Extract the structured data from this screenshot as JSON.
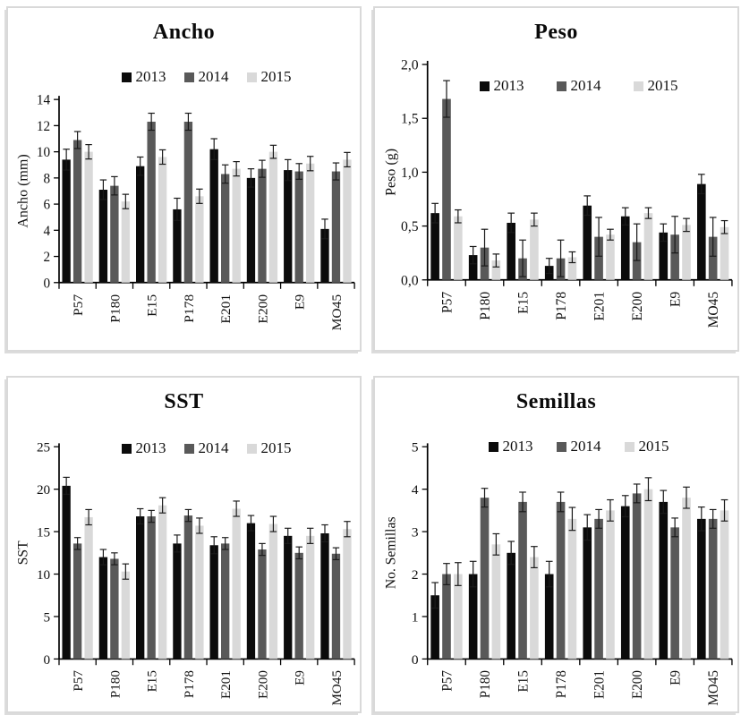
{
  "figure": {
    "background": "#ffffff",
    "panel_border_color": "#d9d9d9",
    "axis_color": "#000000",
    "error_bar_color": "#1a1a1a"
  },
  "chart_data": [
    {
      "type": "bar",
      "title": "Ancho",
      "ylabel": "Ancho (mm)",
      "xlabel": "",
      "ylim": [
        0,
        14
      ],
      "yticks": [
        0,
        2,
        4,
        6,
        8,
        10,
        12,
        14
      ],
      "ytick_labels": [
        "0",
        "2",
        "4",
        "6",
        "8",
        "10",
        "12",
        "14"
      ],
      "grid": false,
      "legend_position": "top-center-above-plot",
      "x_labels_rotated_degrees": -90,
      "categories": [
        "P57",
        "P180",
        "E15",
        "P178",
        "E201",
        "E200",
        "E9",
        "MO45"
      ],
      "series": [
        {
          "name": "2013",
          "color": "#0b0b0b",
          "values": [
            9.4,
            7.1,
            8.9,
            5.6,
            10.2,
            8.0,
            8.6,
            4.1
          ],
          "errors": [
            0.8,
            0.75,
            0.7,
            0.85,
            0.8,
            0.7,
            0.8,
            0.75
          ]
        },
        {
          "name": "2014",
          "color": "#595959",
          "values": [
            10.9,
            7.4,
            12.3,
            12.3,
            8.3,
            8.7,
            8.5,
            8.5
          ],
          "errors": [
            0.65,
            0.7,
            0.65,
            0.65,
            0.7,
            0.65,
            0.6,
            0.65
          ]
        },
        {
          "name": "2015",
          "color": "#d9d9d9",
          "values": [
            10.0,
            6.2,
            9.6,
            6.6,
            8.7,
            10.0,
            9.1,
            9.4
          ],
          "errors": [
            0.55,
            0.55,
            0.55,
            0.55,
            0.55,
            0.5,
            0.55,
            0.55
          ]
        }
      ]
    },
    {
      "type": "bar",
      "title": "Peso",
      "ylabel": "Peso (g)",
      "xlabel": "",
      "ylim": [
        0,
        2
      ],
      "yticks": [
        0,
        0.5,
        1,
        1.5,
        2
      ],
      "ytick_labels": [
        "0,0",
        "0,5",
        "1,0",
        "1,5",
        "2,0"
      ],
      "grid": false,
      "legend_position": "top-center-inside-plot",
      "x_labels_rotated_degrees": -90,
      "categories": [
        "P57",
        "P180",
        "E15",
        "P178",
        "E201",
        "E200",
        "E9",
        "MO45"
      ],
      "series": [
        {
          "name": "2013",
          "color": "#0b0b0b",
          "values": [
            0.62,
            0.23,
            0.53,
            0.13,
            0.69,
            0.59,
            0.44,
            0.89
          ],
          "errors": [
            0.09,
            0.08,
            0.09,
            0.07,
            0.09,
            0.08,
            0.08,
            0.09
          ]
        },
        {
          "name": "2014",
          "color": "#595959",
          "values": [
            1.68,
            0.3,
            0.2,
            0.2,
            0.4,
            0.35,
            0.42,
            0.4
          ],
          "errors": [
            0.17,
            0.17,
            0.17,
            0.17,
            0.18,
            0.17,
            0.17,
            0.18
          ]
        },
        {
          "name": "2015",
          "color": "#d9d9d9",
          "values": [
            0.59,
            0.18,
            0.56,
            0.21,
            0.42,
            0.62,
            0.51,
            0.49
          ],
          "errors": [
            0.06,
            0.06,
            0.06,
            0.05,
            0.05,
            0.05,
            0.06,
            0.06
          ]
        }
      ]
    },
    {
      "type": "bar",
      "title": "SST",
      "ylabel": "SST",
      "xlabel": "",
      "ylim": [
        0,
        25
      ],
      "yticks": [
        0,
        5,
        10,
        15,
        20,
        25
      ],
      "ytick_labels": [
        "0",
        "5",
        "10",
        "15",
        "20",
        "25"
      ],
      "grid": false,
      "legend_position": "top-center-inside-plot",
      "x_labels_rotated_degrees": -90,
      "categories": [
        "P57",
        "P180",
        "E15",
        "P178",
        "E201",
        "E200",
        "E9",
        "MO45"
      ],
      "series": [
        {
          "name": "2013",
          "color": "#0b0b0b",
          "values": [
            20.4,
            12.0,
            16.8,
            13.6,
            13.4,
            16.0,
            14.5,
            14.8
          ],
          "errors": [
            1.0,
            0.9,
            0.9,
            1.0,
            1.0,
            0.9,
            0.9,
            1.0
          ]
        },
        {
          "name": "2014",
          "color": "#595959",
          "values": [
            13.6,
            11.8,
            16.8,
            16.9,
            13.6,
            12.9,
            12.5,
            12.4
          ],
          "errors": [
            0.7,
            0.7,
            0.7,
            0.7,
            0.7,
            0.7,
            0.7,
            0.7
          ]
        },
        {
          "name": "2015",
          "color": "#d9d9d9",
          "values": [
            16.7,
            10.3,
            18.1,
            15.7,
            17.7,
            15.9,
            14.5,
            15.3
          ],
          "errors": [
            0.9,
            0.9,
            0.9,
            0.9,
            0.9,
            0.9,
            0.9,
            0.9
          ]
        }
      ]
    },
    {
      "type": "bar",
      "title": "Semillas",
      "ylabel": "No. Semillas",
      "xlabel": "",
      "ylim": [
        0,
        5
      ],
      "yticks": [
        0,
        1,
        2,
        3,
        4,
        5
      ],
      "ytick_labels": [
        "0",
        "1",
        "2",
        "3",
        "4",
        "5"
      ],
      "grid": false,
      "legend_position": "top-center-inside-plot",
      "x_labels_rotated_degrees": -90,
      "categories": [
        "P57",
        "P180",
        "E15",
        "P178",
        "E201",
        "E200",
        "E9",
        "MO45"
      ],
      "series": [
        {
          "name": "2013",
          "color": "#0b0b0b",
          "values": [
            1.5,
            2.0,
            2.5,
            2.0,
            3.1,
            3.6,
            3.7,
            3.3
          ],
          "errors": [
            0.3,
            0.3,
            0.27,
            0.3,
            0.3,
            0.25,
            0.27,
            0.28
          ]
        },
        {
          "name": "2014",
          "color": "#595959",
          "values": [
            2.0,
            3.8,
            3.7,
            3.7,
            3.3,
            3.9,
            3.1,
            3.3
          ],
          "errors": [
            0.25,
            0.22,
            0.23,
            0.23,
            0.22,
            0.22,
            0.22,
            0.22
          ]
        },
        {
          "name": "2015",
          "color": "#d9d9d9",
          "values": [
            2.0,
            2.7,
            2.4,
            3.3,
            3.5,
            4.0,
            3.8,
            3.5
          ],
          "errors": [
            0.27,
            0.25,
            0.25,
            0.27,
            0.25,
            0.27,
            0.25,
            0.25
          ]
        }
      ]
    }
  ]
}
